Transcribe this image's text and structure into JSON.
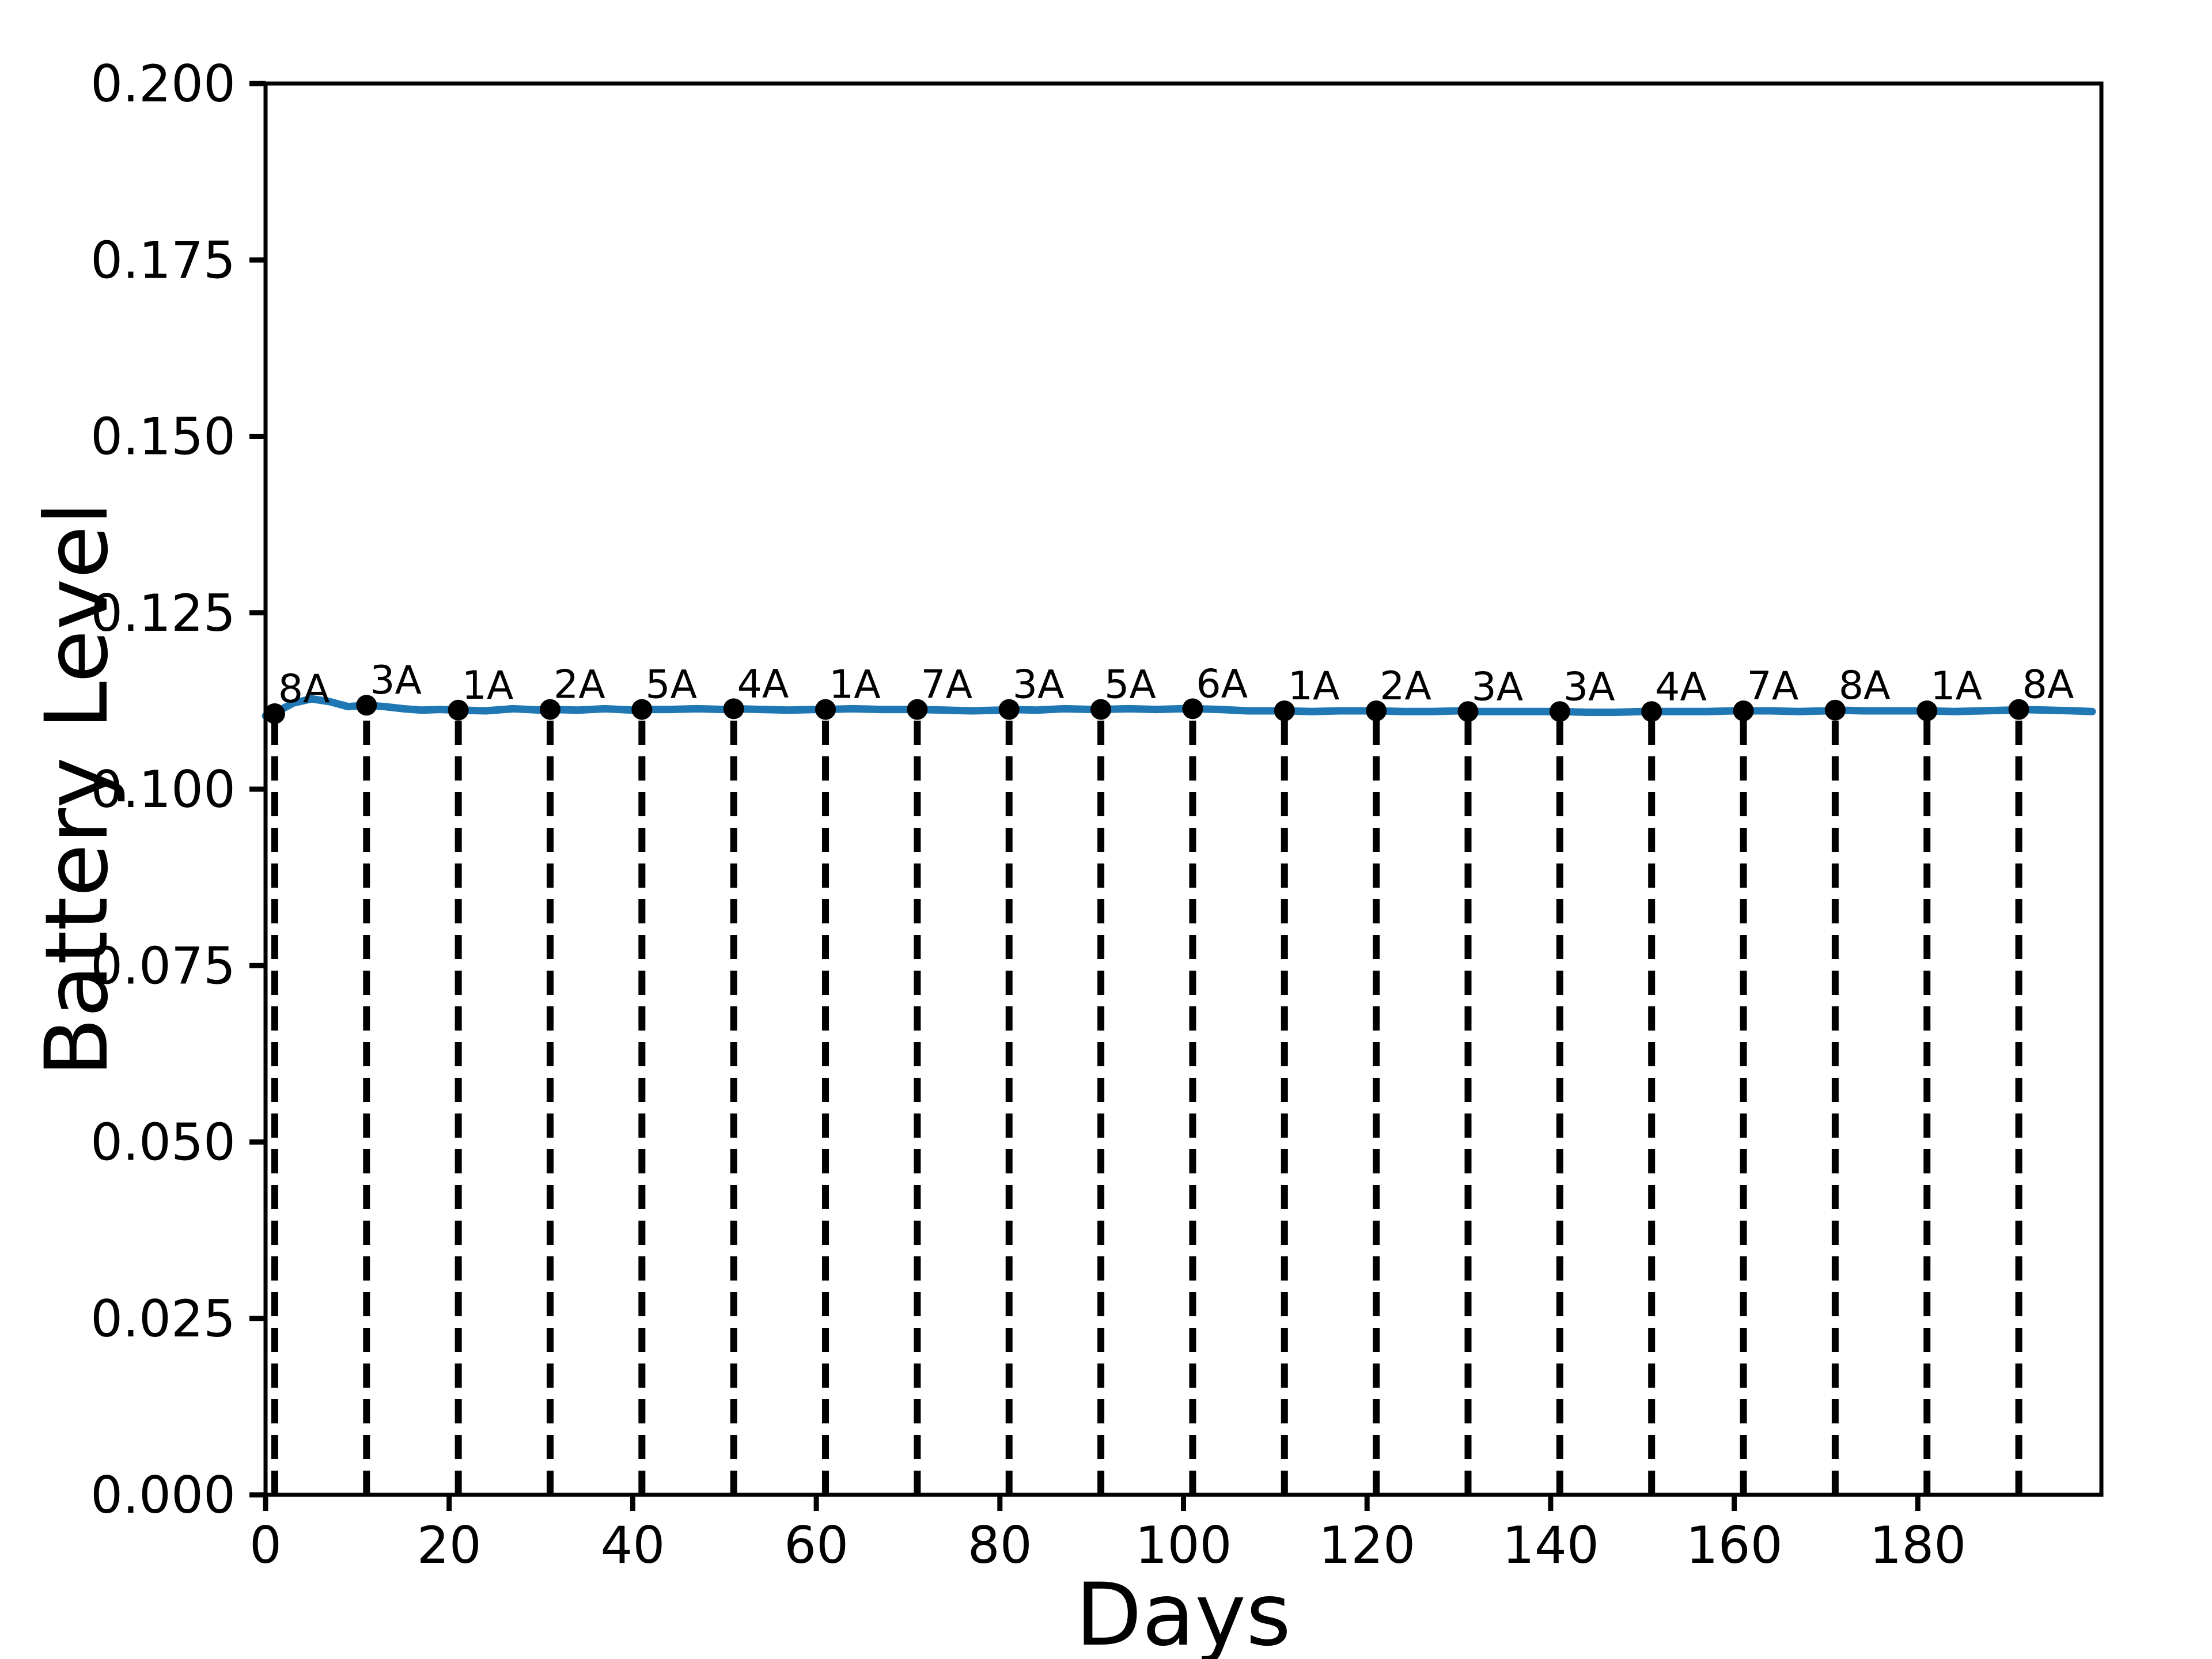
{
  "figure": {
    "background_color": "#ffffff",
    "title": ""
  },
  "chart_data": {
    "type": "line",
    "title": "",
    "xlabel": "Days",
    "ylabel": "Battery Level",
    "xlim": [
      0,
      200
    ],
    "ylim": [
      0.0,
      0.2
    ],
    "grid": false,
    "legend": "none",
    "x_tick_values": [
      0,
      20,
      40,
      60,
      80,
      100,
      120,
      140,
      160,
      180
    ],
    "x_tick_labels": [
      "0",
      "20",
      "40",
      "60",
      "80",
      "100",
      "120",
      "140",
      "160",
      "180"
    ],
    "y_tick_values": [
      0.0,
      0.025,
      0.05,
      0.075,
      0.1,
      0.125,
      0.15,
      0.175,
      0.2
    ],
    "y_tick_labels": [
      "0.000",
      "0.025",
      "0.050",
      "0.075",
      "0.100",
      "0.125",
      "0.150",
      "0.175",
      "0.200"
    ],
    "line_color": "#1f77b4",
    "axis_color": "#000000",
    "annotation_text_color": "#000000",
    "marker_color": "#000000",
    "event_line_color": "#000000",
    "event_line_style": "dashed",
    "series": [
      {
        "name": "battery_level",
        "x": [
          0,
          1,
          2,
          3,
          5,
          7,
          9,
          11,
          13,
          15,
          17,
          19,
          21,
          24,
          27,
          30,
          31,
          34,
          37,
          40,
          41,
          44,
          47,
          50,
          51,
          54,
          57,
          60,
          61,
          64,
          67,
          70,
          71,
          74,
          77,
          80,
          81,
          84,
          87,
          90,
          91,
          94,
          97,
          100,
          101,
          104,
          107,
          110,
          111,
          114,
          117,
          120,
          121,
          124,
          127,
          130,
          131,
          134,
          137,
          140,
          141,
          144,
          147,
          150,
          151,
          154,
          157,
          160,
          161,
          164,
          167,
          170,
          171,
          174,
          177,
          180,
          181,
          184,
          187,
          190,
          191,
          194,
          197,
          199
        ],
        "y": [
          0.1104,
          0.1107,
          0.1115,
          0.1122,
          0.1128,
          0.1124,
          0.1117,
          0.1119,
          0.1117,
          0.1114,
          0.1112,
          0.1113,
          0.1112,
          0.1111,
          0.1114,
          0.1112,
          0.1113,
          0.1112,
          0.1114,
          0.1112,
          0.1113,
          0.1113,
          0.1114,
          0.1113,
          0.1114,
          0.1113,
          0.1112,
          0.1113,
          0.1113,
          0.1114,
          0.1113,
          0.1113,
          0.1113,
          0.1112,
          0.1111,
          0.1112,
          0.1113,
          0.1112,
          0.1114,
          0.1113,
          0.1113,
          0.1114,
          0.1113,
          0.1114,
          0.1114,
          0.1113,
          0.1111,
          0.1111,
          0.1111,
          0.111,
          0.1111,
          0.1111,
          0.1111,
          0.111,
          0.111,
          0.1111,
          0.111,
          0.111,
          0.111,
          0.111,
          0.111,
          0.1109,
          0.1109,
          0.111,
          0.111,
          0.111,
          0.111,
          0.1111,
          0.1111,
          0.1111,
          0.111,
          0.1111,
          0.1112,
          0.1111,
          0.1111,
          0.1111,
          0.1111,
          0.111,
          0.1111,
          0.1112,
          0.1113,
          0.1112,
          0.1111,
          0.111
        ]
      }
    ],
    "annotations": [
      {
        "x": 1,
        "y": 0.1107,
        "label": "8A"
      },
      {
        "x": 11,
        "y": 0.1119,
        "label": "3A"
      },
      {
        "x": 21,
        "y": 0.1112,
        "label": "1A"
      },
      {
        "x": 31,
        "y": 0.1113,
        "label": "2A"
      },
      {
        "x": 41,
        "y": 0.1113,
        "label": "5A"
      },
      {
        "x": 51,
        "y": 0.1114,
        "label": "4A"
      },
      {
        "x": 61,
        "y": 0.1113,
        "label": "1A"
      },
      {
        "x": 71,
        "y": 0.1113,
        "label": "7A"
      },
      {
        "x": 81,
        "y": 0.1113,
        "label": "3A"
      },
      {
        "x": 91,
        "y": 0.1113,
        "label": "5A"
      },
      {
        "x": 101,
        "y": 0.1114,
        "label": "6A"
      },
      {
        "x": 111,
        "y": 0.1111,
        "label": "1A"
      },
      {
        "x": 121,
        "y": 0.1111,
        "label": "2A"
      },
      {
        "x": 131,
        "y": 0.111,
        "label": "3A"
      },
      {
        "x": 141,
        "y": 0.111,
        "label": "3A"
      },
      {
        "x": 151,
        "y": 0.111,
        "label": "4A"
      },
      {
        "x": 161,
        "y": 0.1111,
        "label": "7A"
      },
      {
        "x": 171,
        "y": 0.1112,
        "label": "8A"
      },
      {
        "x": 181,
        "y": 0.1111,
        "label": "1A"
      },
      {
        "x": 191,
        "y": 0.1113,
        "label": "8A"
      }
    ]
  }
}
